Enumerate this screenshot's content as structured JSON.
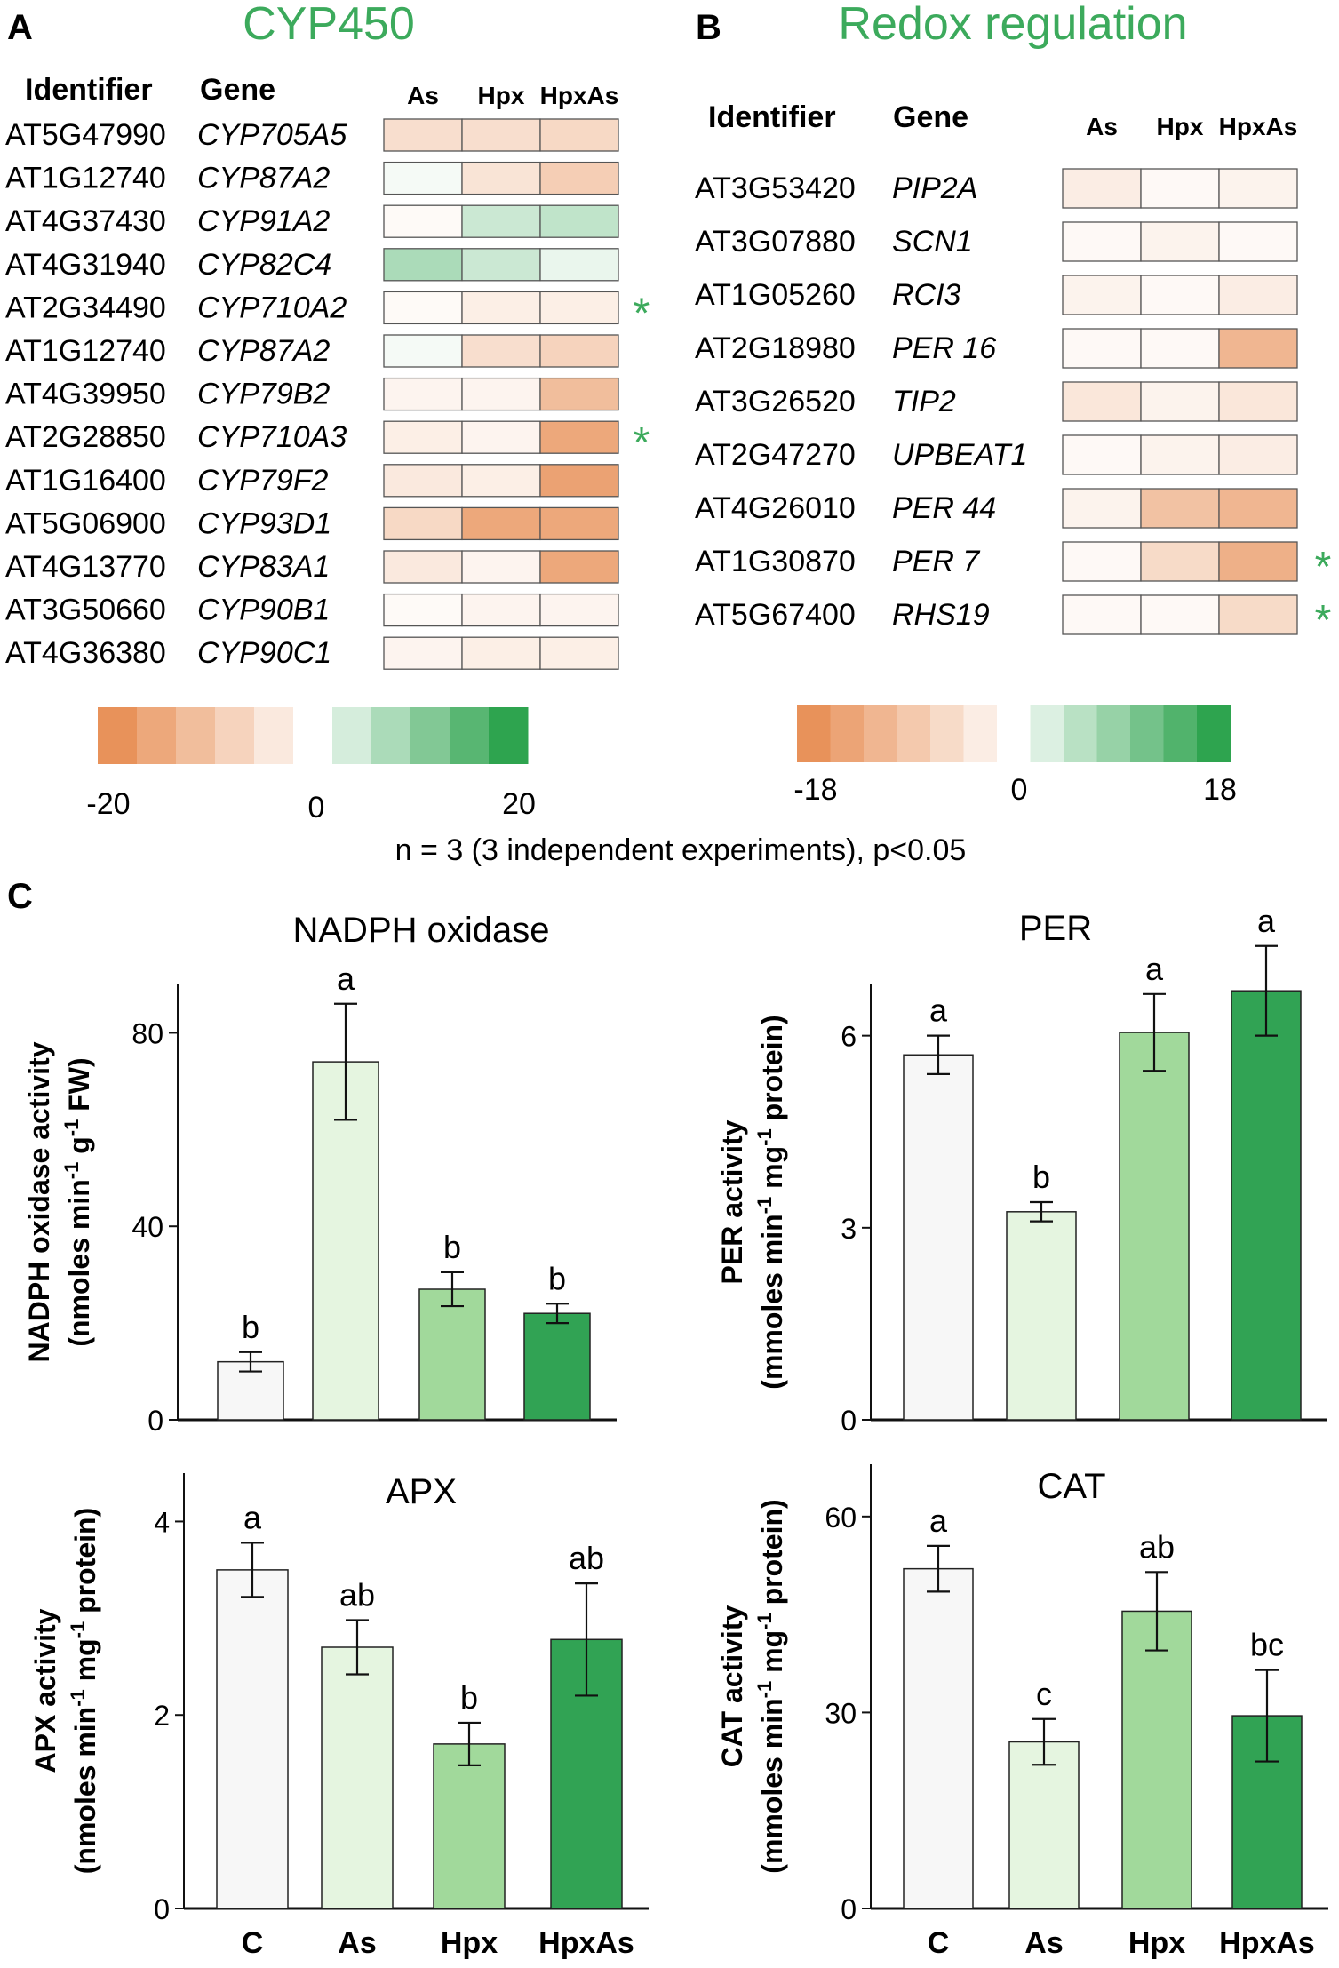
{
  "panel_a": {
    "letter": "A",
    "title": "CYP450",
    "col_identifier": "Identifier",
    "col_gene": "Gene",
    "conditions": [
      "As",
      "Hpx",
      "HpxAs"
    ],
    "rows": [
      {
        "id": "AT5G47990",
        "gene": "CYP705A5",
        "values": [
          -6,
          -6,
          -7
        ],
        "star": false
      },
      {
        "id": "AT1G12740",
        "gene": "CYP87A2",
        "values": [
          1,
          -5,
          -9
        ],
        "star": false
      },
      {
        "id": "AT4G37430",
        "gene": "CYP91A2",
        "values": [
          -1,
          5,
          6
        ],
        "star": false
      },
      {
        "id": "AT4G31940",
        "gene": "CYP82C4",
        "values": [
          8,
          5,
          2
        ],
        "star": false
      },
      {
        "id": "AT2G34490",
        "gene": "CYP710A2",
        "values": [
          -1,
          -3,
          -3
        ],
        "star": true
      },
      {
        "id": "AT1G12740",
        "gene": "CYP87A2",
        "values": [
          1,
          -6,
          -8
        ],
        "star": false
      },
      {
        "id": "AT4G39950",
        "gene": "CYP79B2",
        "values": [
          -2,
          -2,
          -12
        ],
        "star": false
      },
      {
        "id": "AT2G28850",
        "gene": "CYP710A3",
        "values": [
          -3,
          -2,
          -16
        ],
        "star": true
      },
      {
        "id": "AT1G16400",
        "gene": "CYP79F2",
        "values": [
          -4,
          -3,
          -17
        ],
        "star": false
      },
      {
        "id": "AT5G06900",
        "gene": "CYP93D1",
        "values": [
          -7,
          -16,
          -16
        ],
        "star": false
      },
      {
        "id": "AT4G13770",
        "gene": "CYP83A1",
        "values": [
          -4,
          -2,
          -16
        ],
        "star": false
      },
      {
        "id": "AT3G50660",
        "gene": "CYP90B1",
        "values": [
          -1,
          -2,
          -2
        ],
        "star": false
      },
      {
        "id": "AT4G36380",
        "gene": "CYP90C1",
        "values": [
          -2,
          -3,
          -3
        ],
        "star": false
      }
    ],
    "scale_min_label": "-20",
    "scale_zero_label": "0",
    "scale_max_label": "20",
    "scale_max": 20
  },
  "panel_b": {
    "letter": "B",
    "title": "Redox regulation",
    "col_identifier": "Identifier",
    "col_gene": "Gene",
    "conditions": [
      "As",
      "Hpx",
      "HpxAs"
    ],
    "rows": [
      {
        "id": "AT3G53420",
        "gene": "PIP2A",
        "values": [
          -3,
          -1,
          -2
        ],
        "star": false
      },
      {
        "id": "AT3G07880",
        "gene": "SCN1",
        "values": [
          -1,
          -2,
          -1
        ],
        "star": false
      },
      {
        "id": "AT1G05260",
        "gene": "RCI3",
        "values": [
          -2,
          -1,
          -3
        ],
        "star": false
      },
      {
        "id": "AT2G18980",
        "gene": "PER 16",
        "values": [
          -1,
          -1,
          -12
        ],
        "star": false
      },
      {
        "id": "AT3G26520",
        "gene": "TIP2",
        "values": [
          -4,
          -2,
          -4
        ],
        "star": false
      },
      {
        "id": "AT2G47270",
        "gene": "UPBEAT1",
        "values": [
          -1,
          -2,
          -3
        ],
        "star": false
      },
      {
        "id": "AT4G26010",
        "gene": "PER 44",
        "values": [
          -2,
          -10,
          -12
        ],
        "star": false
      },
      {
        "id": "AT1G30870",
        "gene": "PER 7",
        "values": [
          -1,
          -6,
          -13
        ],
        "star": true
      },
      {
        "id": "AT5G67400",
        "gene": "RHS19",
        "values": [
          -1,
          -1,
          -6
        ],
        "star": true
      }
    ],
    "scale_min_label": "-18",
    "scale_zero_label": "0",
    "scale_max_label": "18",
    "scale_max": 18
  },
  "footnote": "n = 3 (3 independent experiments), p<0.05",
  "star_symbol": "*",
  "colors": {
    "red_end": "#e8925a",
    "green_end": "#2ea44f",
    "accent": "#3caa5c",
    "bar_fills": [
      "#f7f7f7",
      "#e5f5e0",
      "#a1d99b",
      "#31a354"
    ]
  },
  "panel_c_letter": "C",
  "chart_data": [
    {
      "type": "bar",
      "title": "NADPH oxidase",
      "categories": [
        "C",
        "As",
        "Hpx",
        "HpxAs"
      ],
      "values": [
        12,
        74,
        27,
        22
      ],
      "errors": [
        2,
        12,
        3.5,
        2
      ],
      "letters": [
        "b",
        "a",
        "b",
        "b"
      ],
      "ylabel_line1": "NADPH oxidase activity",
      "ylabel_line2": "(nmoles min",
      "ylabel_sup1": "-1",
      "ylabel_mid": " g",
      "ylabel_sup2": "-1",
      "ylabel_end": " FW)",
      "ylim": [
        0,
        90
      ],
      "ticks": [
        0,
        40,
        80
      ],
      "tick_labels": [
        "0",
        "40",
        "80"
      ],
      "show_xlabels": false
    },
    {
      "type": "bar",
      "title": "PER",
      "categories": [
        "C",
        "As",
        "Hpx",
        "HpxAs"
      ],
      "values": [
        5.7,
        3.25,
        6.05,
        6.7
      ],
      "errors": [
        0.3,
        0.15,
        0.6,
        0.7
      ],
      "letters": [
        "a",
        "b",
        "a",
        "a"
      ],
      "ylabel_line1": "PER activity",
      "ylabel_line2": "(mmoles min",
      "ylabel_sup1": "-1",
      "ylabel_mid": " mg",
      "ylabel_sup2": "-1",
      "ylabel_end": " protein)",
      "ylim": [
        0,
        6.8
      ],
      "ticks": [
        0,
        3,
        6
      ],
      "tick_labels": [
        "0",
        "3",
        "6"
      ],
      "show_xlabels": false
    },
    {
      "type": "bar",
      "title": "APX",
      "categories": [
        "C",
        "As",
        "Hpx",
        "HpxAs"
      ],
      "values": [
        3.5,
        2.7,
        1.7,
        2.78
      ],
      "errors": [
        0.28,
        0.28,
        0.22,
        0.58
      ],
      "letters": [
        "a",
        "ab",
        "b",
        "ab"
      ],
      "ylabel_line1": "APX activity",
      "ylabel_line2": "(nmoles min",
      "ylabel_sup1": "-1",
      "ylabel_mid": " mg",
      "ylabel_sup2": "-1",
      "ylabel_end": " protein)",
      "ylim": [
        0,
        4.5
      ],
      "ticks": [
        0,
        2,
        4
      ],
      "tick_labels": [
        "0",
        "2",
        "4"
      ],
      "show_xlabels": true
    },
    {
      "type": "bar",
      "title": "CAT",
      "categories": [
        "C",
        "As",
        "Hpx",
        "HpxAs"
      ],
      "values": [
        52,
        25.5,
        45.5,
        29.5
      ],
      "errors": [
        3.5,
        3.5,
        6,
        7
      ],
      "letters": [
        "a",
        "c",
        "ab",
        "bc"
      ],
      "ylabel_line1": "CAT activity",
      "ylabel_line2": "(mmoles min",
      "ylabel_sup1": "-1",
      "ylabel_mid": " mg",
      "ylabel_sup2": "-1",
      "ylabel_end": " protein)",
      "ylim": [
        0,
        68
      ],
      "ticks": [
        0,
        30,
        60
      ],
      "tick_labels": [
        "0",
        "30",
        "60"
      ],
      "show_xlabels": true
    }
  ]
}
